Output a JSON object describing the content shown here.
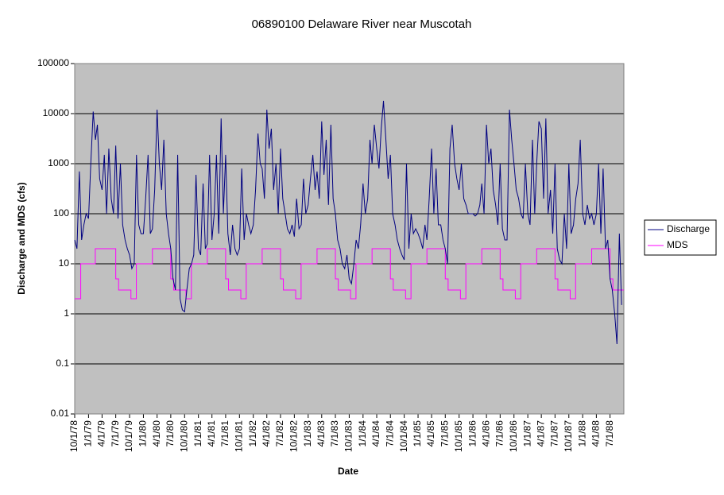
{
  "chart_data": {
    "type": "line",
    "title": "06890100 Delaware River near Muscotah",
    "x_label": "Date",
    "y_label": "Discharge and MDS (cfs)",
    "log_scale_y": true,
    "grid": true,
    "legend_position": "right",
    "plot_background": "#c0c0c0",
    "xlim": [
      "1978-10-01",
      "1988-10-01"
    ],
    "xticks": [
      {
        "value": "1978-10-01",
        "label": "10/1/78"
      },
      {
        "value": "1979-01-01",
        "label": "1/1/79"
      },
      {
        "value": "1979-04-01",
        "label": "4/1/79"
      },
      {
        "value": "1979-07-01",
        "label": "7/1/79"
      },
      {
        "value": "1979-10-01",
        "label": "10/1/79"
      },
      {
        "value": "1980-01-01",
        "label": "1/1/80"
      },
      {
        "value": "1980-04-01",
        "label": "4/1/80"
      },
      {
        "value": "1980-07-01",
        "label": "7/1/80"
      },
      {
        "value": "1980-10-01",
        "label": "10/1/80"
      },
      {
        "value": "1981-01-01",
        "label": "1/1/81"
      },
      {
        "value": "1981-04-01",
        "label": "4/1/81"
      },
      {
        "value": "1981-07-01",
        "label": "7/1/81"
      },
      {
        "value": "1981-10-01",
        "label": "10/1/81"
      },
      {
        "value": "1982-01-01",
        "label": "1/1/82"
      },
      {
        "value": "1982-04-01",
        "label": "4/1/82"
      },
      {
        "value": "1982-07-01",
        "label": "7/1/82"
      },
      {
        "value": "1982-10-01",
        "label": "10/1/82"
      },
      {
        "value": "1983-01-01",
        "label": "1/1/83"
      },
      {
        "value": "1983-04-01",
        "label": "4/1/83"
      },
      {
        "value": "1983-07-01",
        "label": "7/1/83"
      },
      {
        "value": "1983-10-01",
        "label": "10/1/83"
      },
      {
        "value": "1984-01-01",
        "label": "1/1/84"
      },
      {
        "value": "1984-04-01",
        "label": "4/1/84"
      },
      {
        "value": "1984-07-01",
        "label": "7/1/84"
      },
      {
        "value": "1984-10-01",
        "label": "10/1/84"
      },
      {
        "value": "1985-01-01",
        "label": "1/1/85"
      },
      {
        "value": "1985-04-01",
        "label": "4/1/85"
      },
      {
        "value": "1985-07-01",
        "label": "7/1/85"
      },
      {
        "value": "1985-10-01",
        "label": "10/1/85"
      },
      {
        "value": "1986-01-01",
        "label": "1/1/86"
      },
      {
        "value": "1986-04-01",
        "label": "4/1/86"
      },
      {
        "value": "1986-07-01",
        "label": "7/1/86"
      },
      {
        "value": "1986-10-01",
        "label": "10/1/86"
      },
      {
        "value": "1987-01-01",
        "label": "1/1/87"
      },
      {
        "value": "1987-04-01",
        "label": "4/1/87"
      },
      {
        "value": "1987-07-01",
        "label": "7/1/87"
      },
      {
        "value": "1987-10-01",
        "label": "10/1/87"
      },
      {
        "value": "1988-01-01",
        "label": "1/1/88"
      },
      {
        "value": "1988-04-01",
        "label": "4/1/88"
      },
      {
        "value": "1988-07-01",
        "label": "7/1/88"
      }
    ],
    "ylim": [
      0.01,
      100000
    ],
    "yticks": [
      0.01,
      0.1,
      1,
      10,
      100,
      1000,
      10000,
      100000
    ],
    "series": [
      {
        "name": "Discharge",
        "color": "#000080",
        "x": [
          "1978-10-01",
          "1978-10-16",
          "1978-11-01",
          "1978-11-16",
          "1978-12-01",
          "1978-12-16",
          "1979-01-01",
          "1979-01-16",
          "1979-02-01",
          "1979-02-16",
          "1979-03-01",
          "1979-03-16",
          "1979-04-01",
          "1979-04-16",
          "1979-05-01",
          "1979-05-16",
          "1979-06-01",
          "1979-06-16",
          "1979-07-01",
          "1979-07-16",
          "1979-08-01",
          "1979-08-16",
          "1979-09-01",
          "1979-09-16",
          "1979-10-01",
          "1979-10-16",
          "1979-11-01",
          "1979-11-16",
          "1979-12-01",
          "1979-12-16",
          "1980-01-01",
          "1980-01-16",
          "1980-02-01",
          "1980-02-16",
          "1980-03-01",
          "1980-03-16",
          "1980-04-01",
          "1980-04-16",
          "1980-05-01",
          "1980-05-16",
          "1980-06-01",
          "1980-06-16",
          "1980-07-01",
          "1980-07-16",
          "1980-08-01",
          "1980-08-16",
          "1980-09-01",
          "1980-09-16",
          "1980-10-01",
          "1980-10-16",
          "1980-11-01",
          "1980-11-16",
          "1980-12-01",
          "1980-12-16",
          "1981-01-01",
          "1981-01-16",
          "1981-02-01",
          "1981-02-16",
          "1981-03-01",
          "1981-03-16",
          "1981-04-01",
          "1981-04-16",
          "1981-05-01",
          "1981-05-16",
          "1981-06-01",
          "1981-06-16",
          "1981-07-01",
          "1981-07-16",
          "1981-08-01",
          "1981-08-16",
          "1981-09-01",
          "1981-09-16",
          "1981-10-01",
          "1981-10-16",
          "1981-11-01",
          "1981-11-16",
          "1981-12-01",
          "1981-12-16",
          "1982-01-01",
          "1982-01-16",
          "1982-02-01",
          "1982-02-16",
          "1982-03-01",
          "1982-03-16",
          "1982-04-01",
          "1982-04-16",
          "1982-05-01",
          "1982-05-16",
          "1982-06-01",
          "1982-06-16",
          "1982-07-01",
          "1982-07-16",
          "1982-08-01",
          "1982-08-16",
          "1982-09-01",
          "1982-09-16",
          "1982-10-01",
          "1982-10-16",
          "1982-11-01",
          "1982-11-16",
          "1982-12-01",
          "1982-12-16",
          "1983-01-01",
          "1983-01-16",
          "1983-02-01",
          "1983-02-16",
          "1983-03-01",
          "1983-03-16",
          "1983-04-01",
          "1983-04-16",
          "1983-05-01",
          "1983-05-16",
          "1983-06-01",
          "1983-06-16",
          "1983-07-01",
          "1983-07-16",
          "1983-08-01",
          "1983-08-16",
          "1983-09-01",
          "1983-09-16",
          "1983-10-01",
          "1983-10-16",
          "1983-11-01",
          "1983-11-16",
          "1983-12-01",
          "1983-12-16",
          "1984-01-01",
          "1984-01-16",
          "1984-02-01",
          "1984-02-16",
          "1984-03-01",
          "1984-03-16",
          "1984-04-01",
          "1984-04-16",
          "1984-05-01",
          "1984-05-16",
          "1984-06-01",
          "1984-06-16",
          "1984-07-01",
          "1984-07-16",
          "1984-08-01",
          "1984-08-16",
          "1984-09-01",
          "1984-09-16",
          "1984-10-01",
          "1984-10-16",
          "1984-11-01",
          "1984-11-16",
          "1984-12-01",
          "1984-12-16",
          "1985-01-01",
          "1985-01-16",
          "1985-02-01",
          "1985-02-16",
          "1985-03-01",
          "1985-03-16",
          "1985-04-01",
          "1985-04-16",
          "1985-05-01",
          "1985-05-16",
          "1985-06-01",
          "1985-06-16",
          "1985-07-01",
          "1985-07-16",
          "1985-08-01",
          "1985-08-16",
          "1985-09-01",
          "1985-09-16",
          "1985-10-01",
          "1985-10-16",
          "1985-11-01",
          "1985-11-16",
          "1985-12-01",
          "1985-12-16",
          "1986-01-01",
          "1986-01-16",
          "1986-02-01",
          "1986-02-16",
          "1986-03-01",
          "1986-03-16",
          "1986-04-01",
          "1986-04-16",
          "1986-05-01",
          "1986-05-16",
          "1986-06-01",
          "1986-06-16",
          "1986-07-01",
          "1986-07-16",
          "1986-08-01",
          "1986-08-16",
          "1986-09-01",
          "1986-09-16",
          "1986-10-01",
          "1986-10-16",
          "1986-11-01",
          "1986-11-16",
          "1986-12-01",
          "1986-12-16",
          "1987-01-01",
          "1987-01-16",
          "1987-02-01",
          "1987-02-16",
          "1987-03-01",
          "1987-03-16",
          "1987-04-01",
          "1987-04-16",
          "1987-05-01",
          "1987-05-16",
          "1987-06-01",
          "1987-06-16",
          "1987-07-01",
          "1987-07-16",
          "1987-08-01",
          "1987-08-16",
          "1987-09-01",
          "1987-09-16",
          "1987-10-01",
          "1987-10-16",
          "1987-11-01",
          "1987-11-16",
          "1987-12-01",
          "1987-12-16",
          "1988-01-01",
          "1988-01-16",
          "1988-02-01",
          "1988-02-16",
          "1988-03-01",
          "1988-03-16",
          "1988-04-01",
          "1988-04-16",
          "1988-05-01",
          "1988-05-16",
          "1988-06-01",
          "1988-06-16",
          "1988-07-01",
          "1988-07-16",
          "1988-08-01",
          "1988-08-16",
          "1988-09-01",
          "1988-09-16"
        ],
        "values": [
          30,
          20,
          700,
          30,
          60,
          100,
          80,
          1000,
          11000,
          3000,
          6000,
          500,
          300,
          1500,
          100,
          2000,
          200,
          100,
          2300,
          80,
          1000,
          60,
          30,
          20,
          15,
          8,
          10,
          1500,
          60,
          40,
          40,
          200,
          1500,
          40,
          50,
          300,
          12000,
          1000,
          300,
          3000,
          100,
          40,
          20,
          5,
          3,
          1500,
          2,
          1.2,
          1.1,
          3,
          8,
          10,
          15,
          600,
          20,
          15,
          400,
          20,
          25,
          1500,
          30,
          100,
          1500,
          40,
          8000,
          100,
          1500,
          40,
          15,
          60,
          20,
          15,
          20,
          800,
          30,
          100,
          60,
          40,
          60,
          300,
          4000,
          1000,
          800,
          200,
          12000,
          2000,
          5000,
          300,
          1000,
          100,
          2000,
          200,
          100,
          50,
          40,
          60,
          35,
          200,
          50,
          60,
          500,
          100,
          150,
          500,
          1500,
          300,
          700,
          200,
          7000,
          600,
          3000,
          150,
          6000,
          200,
          100,
          30,
          20,
          10,
          8,
          15,
          5,
          4,
          10,
          30,
          20,
          60,
          400,
          100,
          200,
          3000,
          1000,
          6000,
          2000,
          800,
          5000,
          18000,
          3000,
          500,
          1500,
          100,
          60,
          30,
          20,
          15,
          12,
          1000,
          20,
          100,
          40,
          50,
          40,
          30,
          20,
          60,
          30,
          200,
          2000,
          100,
          800,
          60,
          60,
          30,
          20,
          10,
          2000,
          6000,
          1000,
          500,
          300,
          1000,
          200,
          150,
          100,
          100,
          100,
          90,
          100,
          150,
          400,
          100,
          6000,
          1000,
          2000,
          300,
          150,
          60,
          1000,
          50,
          30,
          30,
          12000,
          3000,
          1000,
          300,
          200,
          100,
          80,
          1000,
          100,
          60,
          3000,
          100,
          1000,
          7000,
          5000,
          200,
          8000,
          100,
          300,
          40,
          1000,
          20,
          12,
          10,
          100,
          20,
          1000,
          40,
          60,
          200,
          400,
          3000,
          100,
          60,
          150,
          80,
          100,
          60,
          100,
          1000,
          40,
          800,
          20,
          30,
          5,
          3,
          1,
          0.25,
          40,
          1.5
        ]
      },
      {
        "name": "MDS",
        "color": "#ff00ff",
        "x": [
          "1978-10-01",
          "1978-11-10",
          "1978-11-10",
          "1979-02-15",
          "1979-02-15",
          "1979-07-01",
          "1979-07-01",
          "1979-07-20",
          "1979-07-20",
          "1979-10-01",
          "1979-10-10",
          "1979-10-10",
          "1979-11-15",
          "1979-11-15",
          "1980-03-01",
          "1980-03-01",
          "1980-07-01",
          "1980-07-01",
          "1980-07-20",
          "1980-07-20",
          "1980-10-01",
          "1980-10-10",
          "1980-10-10",
          "1980-11-15",
          "1980-11-15",
          "1981-03-01",
          "1981-03-01",
          "1981-07-01",
          "1981-07-01",
          "1981-07-20",
          "1981-07-20",
          "1981-10-01",
          "1981-10-10",
          "1981-10-10",
          "1981-11-15",
          "1981-11-15",
          "1982-03-01",
          "1982-03-01",
          "1982-07-01",
          "1982-07-01",
          "1982-07-20",
          "1982-07-20",
          "1982-10-01",
          "1982-10-10",
          "1982-10-10",
          "1982-11-15",
          "1982-11-15",
          "1983-03-01",
          "1983-03-01",
          "1983-07-01",
          "1983-07-01",
          "1983-07-20",
          "1983-07-20",
          "1983-10-01",
          "1983-10-10",
          "1983-10-10",
          "1983-11-15",
          "1983-11-15",
          "1984-03-01",
          "1984-03-01",
          "1984-07-01",
          "1984-07-01",
          "1984-07-20",
          "1984-07-20",
          "1984-10-01",
          "1984-10-10",
          "1984-10-10",
          "1984-11-15",
          "1984-11-15",
          "1985-03-01",
          "1985-03-01",
          "1985-07-01",
          "1985-07-01",
          "1985-07-20",
          "1985-07-20",
          "1985-10-01",
          "1985-10-10",
          "1985-10-10",
          "1985-11-15",
          "1985-11-15",
          "1986-03-01",
          "1986-03-01",
          "1986-07-01",
          "1986-07-01",
          "1986-07-20",
          "1986-07-20",
          "1986-10-01",
          "1986-10-10",
          "1986-10-10",
          "1986-11-15",
          "1986-11-15",
          "1987-03-01",
          "1987-03-01",
          "1987-07-01",
          "1987-07-01",
          "1987-07-20",
          "1987-07-20",
          "1987-10-01",
          "1987-10-10",
          "1987-10-10",
          "1987-11-15",
          "1987-11-15",
          "1988-03-01",
          "1988-03-01",
          "1988-07-01",
          "1988-07-01",
          "1988-07-20",
          "1988-07-20",
          "1988-09-30"
        ],
        "values": [
          2,
          2,
          10,
          10,
          20,
          20,
          5,
          5,
          3,
          3,
          3,
          2,
          2,
          10,
          10,
          20,
          20,
          5,
          5,
          3,
          3,
          3,
          2,
          2,
          10,
          10,
          20,
          20,
          5,
          5,
          3,
          3,
          3,
          2,
          2,
          10,
          10,
          20,
          20,
          5,
          5,
          3,
          3,
          3,
          2,
          2,
          10,
          10,
          20,
          20,
          5,
          5,
          3,
          3,
          3,
          2,
          2,
          10,
          10,
          20,
          20,
          5,
          5,
          3,
          3,
          3,
          2,
          2,
          10,
          10,
          20,
          20,
          5,
          5,
          3,
          3,
          3,
          2,
          2,
          10,
          10,
          20,
          20,
          5,
          5,
          3,
          3,
          3,
          2,
          2,
          10,
          10,
          20,
          20,
          5,
          5,
          3,
          3,
          3,
          2,
          2,
          10,
          10,
          20,
          20,
          5,
          5,
          3,
          3
        ]
      }
    ]
  }
}
